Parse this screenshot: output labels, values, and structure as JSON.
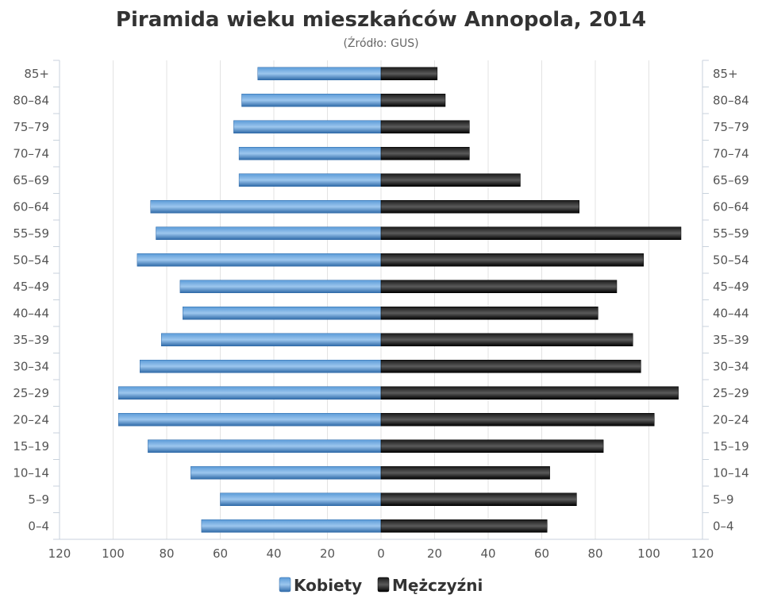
{
  "chart_data": {
    "type": "bar",
    "orientation": "horizontal-pyramid",
    "title": "Piramida wieku mieszkańców Annopola, 2014",
    "subtitle": "(Źródło: GUS)",
    "categories": [
      "85+",
      "80–84",
      "75–79",
      "70–74",
      "65–69",
      "60–64",
      "55–59",
      "50–54",
      "45–49",
      "40–44",
      "35–39",
      "30–34",
      "25–29",
      "20–24",
      "15–19",
      "10–14",
      "5–9",
      "0–4"
    ],
    "series": [
      {
        "name": "Kobiety",
        "color": "#3d7fc1",
        "values": [
          46,
          52,
          55,
          53,
          53,
          86,
          84,
          91,
          75,
          74,
          82,
          90,
          98,
          98,
          87,
          71,
          60,
          67
        ]
      },
      {
        "name": "Mężczyźni",
        "color": "#111111",
        "values": [
          21,
          24,
          33,
          33,
          52,
          74,
          112,
          98,
          88,
          81,
          94,
          97,
          111,
          102,
          83,
          63,
          73,
          62
        ]
      }
    ],
    "xlim": [
      -120,
      120
    ],
    "x_ticks": [
      120,
      100,
      80,
      60,
      40,
      20,
      0,
      20,
      40,
      60,
      80,
      100,
      120
    ],
    "grid": true,
    "legend_position": "bottom"
  }
}
